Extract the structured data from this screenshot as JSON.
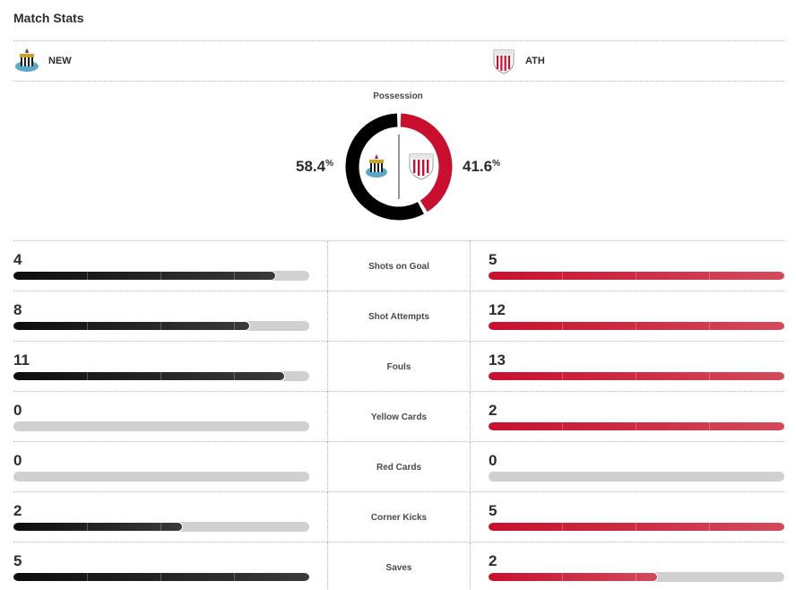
{
  "header": {
    "title": "Match Stats"
  },
  "teams": {
    "home": {
      "abbr": "NEW",
      "crest_icon": "newcastle-crest-icon",
      "color": "#000000"
    },
    "away": {
      "abbr": "ATH",
      "crest_icon": "athletic-crest-icon",
      "color": "#c8102e"
    }
  },
  "possession": {
    "label": "Possession",
    "home_value": "58.4",
    "away_value": "41.6",
    "unit": "%",
    "home_fraction": 0.584,
    "away_fraction": 0.416
  },
  "stats": [
    {
      "label": "Shots on Goal",
      "home": 4,
      "away": 5
    },
    {
      "label": "Shot Attempts",
      "home": 8,
      "away": 12
    },
    {
      "label": "Fouls",
      "home": 11,
      "away": 13
    },
    {
      "label": "Yellow Cards",
      "home": 0,
      "away": 2
    },
    {
      "label": "Red Cards",
      "home": 0,
      "away": 0
    },
    {
      "label": "Corner Kicks",
      "home": 2,
      "away": 5
    },
    {
      "label": "Saves",
      "home": 5,
      "away": 2
    }
  ]
}
